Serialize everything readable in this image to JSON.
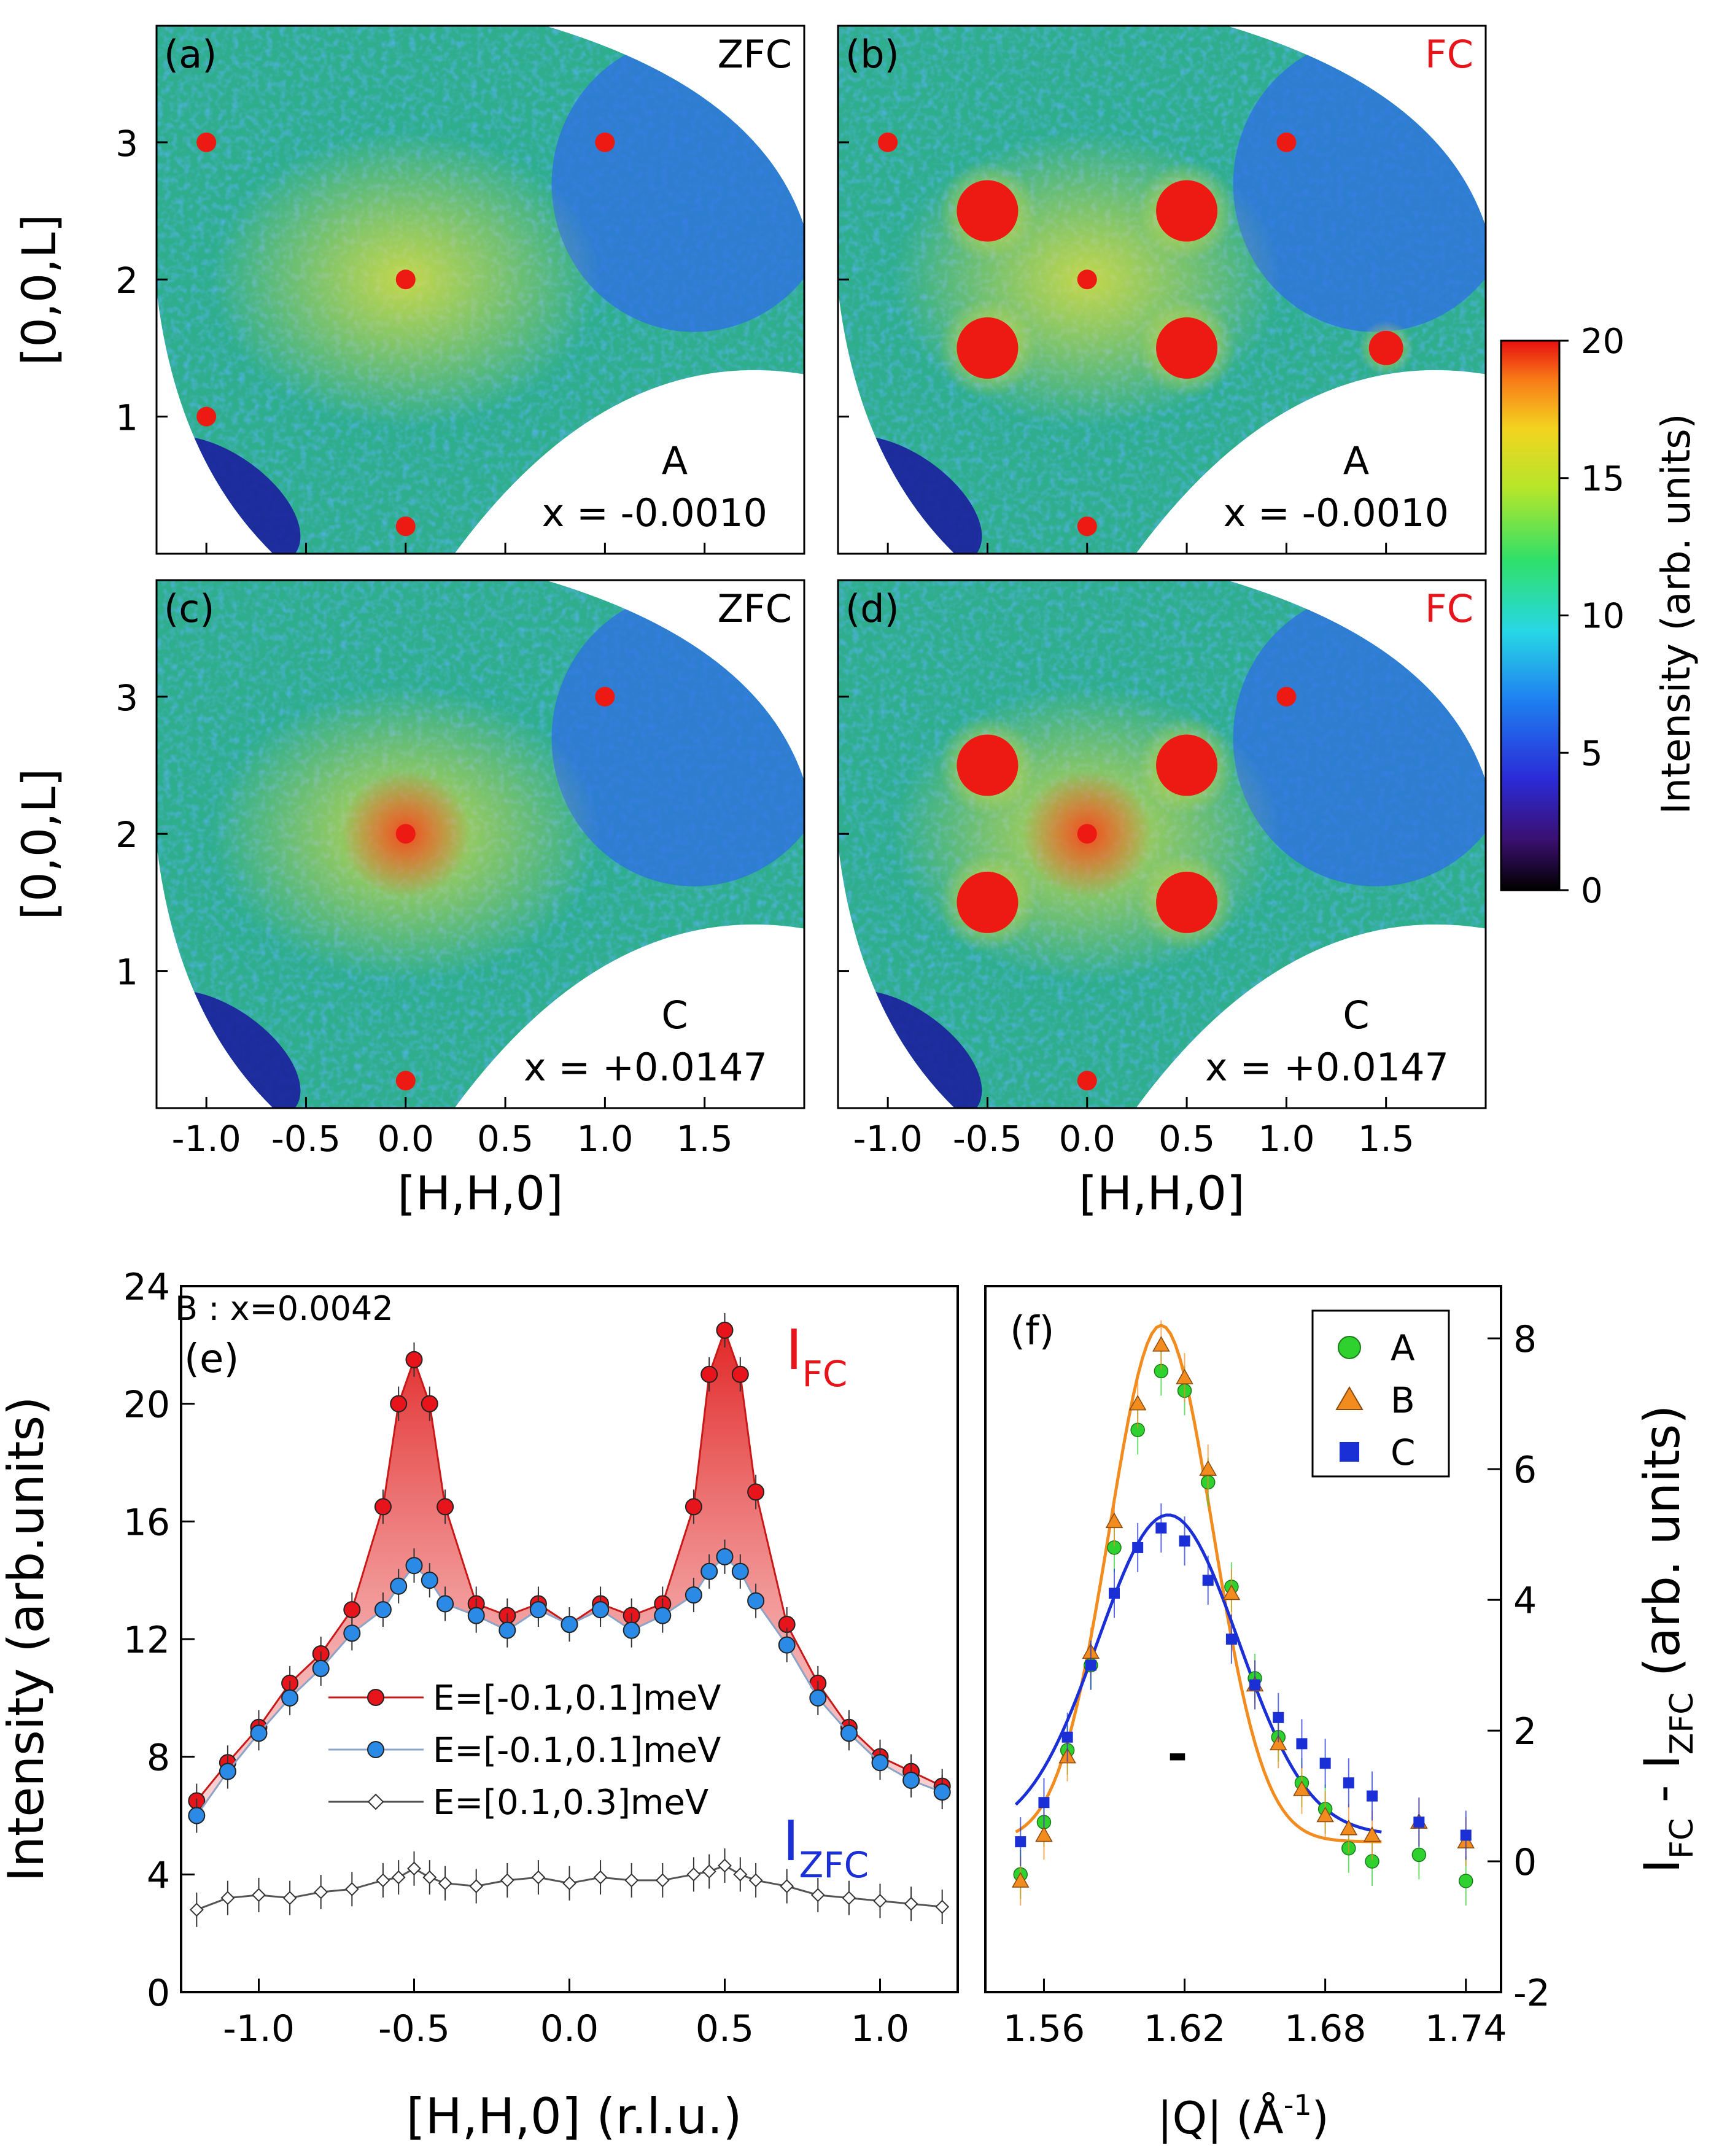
{
  "maps": {
    "y_ticks": [
      "1",
      "2",
      "3"
    ],
    "x_ticks": [
      "-1.0",
      "-0.5",
      "0.0",
      "0.5",
      "1.0",
      "1.5"
    ],
    "y_label": "[0,0,L]",
    "x_label": "[H,H,0]",
    "panels": [
      {
        "letter": "(a)",
        "mode": "ZFC",
        "mode_color": "#000000",
        "sample": "A",
        "x_value": "x = -0.0010"
      },
      {
        "letter": "(b)",
        "mode": "FC",
        "mode_color": "#e8141b",
        "sample": "A",
        "x_value": "x = -0.0010"
      },
      {
        "letter": "(c)",
        "mode": "ZFC",
        "mode_color": "#000000",
        "sample": "C",
        "x_value": "x = +0.0147"
      },
      {
        "letter": "(d)",
        "mode": "FC",
        "mode_color": "#e8141b",
        "sample": "C",
        "x_value": "x = +0.0147"
      }
    ]
  },
  "colorbar": {
    "ticks": [
      "0",
      "5",
      "10",
      "15",
      "20"
    ],
    "label": "Intensity (arb. units)",
    "min": 0,
    "max": 20
  },
  "panel_e": {
    "letter": "(e)",
    "sample_note": "B : x=0.0042",
    "ylabel": "Intensity (arb.units)",
    "xlabel": "[H,H,0] (r.l.u.)",
    "y_ticks": [
      "0",
      "4",
      "8",
      "12",
      "16",
      "20",
      "24"
    ],
    "x_ticks": [
      "-1.0",
      "-0.5",
      "0.0",
      "0.5",
      "1.0"
    ],
    "ifc_main": "I",
    "ifc_sub": "FC",
    "izfc_main": "I",
    "izfc_sub": "ZFC",
    "legend": [
      "E=[-0.1,0.1]meV",
      "E=[-0.1,0.1]meV",
      "E=[0.1,0.3]meV"
    ]
  },
  "panel_f": {
    "letter": "(f)",
    "ylabel_main": "I",
    "ylabel_sub1": "FC",
    "ylabel_mid": " - I",
    "ylabel_sub2": "ZFC",
    "ylabel_tail": " (arb. units)",
    "xlabel_main": "|Q| (Å",
    "xlabel_sup": "-1",
    "xlabel_tail": ")",
    "y_ticks": [
      "-2",
      "0",
      "2",
      "4",
      "6",
      "8"
    ],
    "x_ticks": [
      "1.56",
      "1.62",
      "1.68",
      "1.74"
    ],
    "legend": [
      "A",
      "B",
      "C"
    ],
    "resolution_mark": "-"
  },
  "chart_data": [
    {
      "type": "heatmap",
      "panel": "(a)",
      "xlim": [
        -1.25,
        2.0
      ],
      "ylim": [
        0,
        3.85
      ],
      "color_range": [
        0,
        20
      ],
      "bright_spots": [
        [
          -1.0,
          3.0
        ],
        [
          1.0,
          3.0
        ],
        [
          -1.0,
          1.0
        ],
        [
          0.0,
          2.0
        ],
        [
          0.0,
          0.2
        ]
      ],
      "diffuse_cross": [
        0.0,
        2.0
      ]
    },
    {
      "type": "heatmap",
      "panel": "(b)",
      "xlim": [
        -1.25,
        2.0
      ],
      "ylim": [
        0,
        3.85
      ],
      "color_range": [
        0,
        20
      ],
      "bright_spots": [
        [
          -0.5,
          2.5
        ],
        [
          0.5,
          2.5
        ],
        [
          -0.5,
          1.5
        ],
        [
          0.5,
          1.5
        ],
        [
          1.5,
          1.5
        ],
        [
          -1.0,
          3.0
        ],
        [
          1.0,
          3.0
        ],
        [
          0.0,
          2.0
        ],
        [
          0.0,
          0.2
        ]
      ],
      "diffuse_cross": [
        0.0,
        2.0
      ]
    },
    {
      "type": "heatmap",
      "panel": "(c)",
      "xlim": [
        -1.25,
        2.0
      ],
      "ylim": [
        0,
        3.85
      ],
      "color_range": [
        0,
        20
      ],
      "bright_spots": [
        [
          1.0,
          3.0
        ],
        [
          0.0,
          2.0
        ],
        [
          0.0,
          0.2
        ]
      ],
      "diffuse_cross": [
        0.0,
        2.0
      ]
    },
    {
      "type": "heatmap",
      "panel": "(d)",
      "xlim": [
        -1.25,
        2.0
      ],
      "ylim": [
        0,
        3.85
      ],
      "color_range": [
        0,
        20
      ],
      "bright_spots": [
        [
          -0.5,
          2.5
        ],
        [
          0.5,
          2.5
        ],
        [
          -0.5,
          1.5
        ],
        [
          0.5,
          1.5
        ],
        [
          1.0,
          3.0
        ],
        [
          0.0,
          2.0
        ],
        [
          0.0,
          0.2
        ]
      ],
      "diffuse_cross": [
        0.0,
        2.0
      ]
    },
    {
      "type": "line",
      "panel": "(e)",
      "xlim": [
        -1.25,
        1.25
      ],
      "ylim": [
        0,
        24
      ],
      "x": [
        -1.2,
        -1.1,
        -1.0,
        -0.9,
        -0.8,
        -0.7,
        -0.6,
        -0.55,
        -0.5,
        -0.45,
        -0.4,
        -0.3,
        -0.2,
        -0.1,
        0.0,
        0.1,
        0.2,
        0.3,
        0.4,
        0.45,
        0.5,
        0.55,
        0.6,
        0.7,
        0.8,
        0.9,
        1.0,
        1.1,
        1.2
      ],
      "series": [
        {
          "name": "E=[-0.1,0.1]meV",
          "values": [
            6.5,
            7.8,
            9.0,
            10.5,
            11.5,
            13.0,
            16.5,
            20.0,
            21.5,
            20.0,
            16.5,
            13.2,
            12.8,
            13.2,
            12.5,
            13.2,
            12.8,
            13.2,
            16.5,
            21.0,
            22.5,
            21.0,
            17.0,
            12.5,
            10.5,
            9.0,
            8.0,
            7.5,
            7.0
          ]
        },
        {
          "name": "E=[-0.1,0.1]meV",
          "values": [
            6.0,
            7.5,
            8.8,
            10.0,
            11.0,
            12.2,
            13.0,
            13.8,
            14.5,
            14.0,
            13.2,
            12.8,
            12.3,
            13.0,
            12.5,
            13.0,
            12.3,
            12.8,
            13.5,
            14.3,
            14.8,
            14.3,
            13.3,
            11.8,
            10.0,
            8.8,
            7.8,
            7.2,
            6.8
          ]
        },
        {
          "name": "E=[0.1,0.3]meV",
          "values": [
            2.8,
            3.2,
            3.3,
            3.2,
            3.4,
            3.5,
            3.8,
            3.9,
            4.2,
            3.9,
            3.7,
            3.6,
            3.8,
            3.9,
            3.7,
            3.9,
            3.8,
            3.8,
            4.0,
            4.1,
            4.3,
            4.0,
            3.8,
            3.6,
            3.3,
            3.2,
            3.1,
            3.0,
            2.9
          ]
        }
      ]
    },
    {
      "type": "scatter",
      "panel": "(f)",
      "xlim": [
        1.535,
        1.755
      ],
      "ylim": [
        -2,
        8.8
      ],
      "series": [
        {
          "name": "A",
          "color": "#2fd12f",
          "x": [
            1.55,
            1.56,
            1.57,
            1.58,
            1.59,
            1.6,
            1.61,
            1.62,
            1.63,
            1.64,
            1.65,
            1.66,
            1.67,
            1.68,
            1.69,
            1.7,
            1.72,
            1.74
          ],
          "y": [
            -0.2,
            0.6,
            1.7,
            3.0,
            4.8,
            6.6,
            7.5,
            7.2,
            5.8,
            4.2,
            2.8,
            1.9,
            1.2,
            0.8,
            0.2,
            0.0,
            0.1,
            -0.3
          ]
        },
        {
          "name": "B",
          "color": "#f28c1f",
          "x": [
            1.55,
            1.56,
            1.57,
            1.58,
            1.59,
            1.6,
            1.61,
            1.62,
            1.63,
            1.64,
            1.65,
            1.66,
            1.67,
            1.68,
            1.69,
            1.7,
            1.72,
            1.74
          ],
          "y": [
            -0.3,
            0.4,
            1.6,
            3.2,
            5.2,
            7.0,
            7.9,
            7.4,
            6.0,
            4.1,
            2.7,
            1.8,
            1.1,
            0.7,
            0.5,
            0.4,
            0.6,
            0.3
          ]
        },
        {
          "name": "C",
          "color": "#1a2fd6",
          "x": [
            1.55,
            1.56,
            1.57,
            1.58,
            1.59,
            1.6,
            1.61,
            1.62,
            1.63,
            1.64,
            1.65,
            1.66,
            1.67,
            1.68,
            1.69,
            1.7,
            1.72,
            1.74
          ],
          "y": [
            0.3,
            0.9,
            1.9,
            3.0,
            4.1,
            4.8,
            5.1,
            4.9,
            4.3,
            3.4,
            2.7,
            2.2,
            1.8,
            1.5,
            1.2,
            1.0,
            0.6,
            0.4
          ]
        }
      ],
      "fits": [
        {
          "name": "B",
          "color": "#f28c1f",
          "center": 1.61,
          "amplitude": 7.9,
          "width": 0.022,
          "offset": 0.3
        },
        {
          "name": "C",
          "color": "#1a2fd6",
          "center": 1.613,
          "amplitude": 4.9,
          "width": 0.03,
          "offset": 0.4
        }
      ]
    }
  ]
}
